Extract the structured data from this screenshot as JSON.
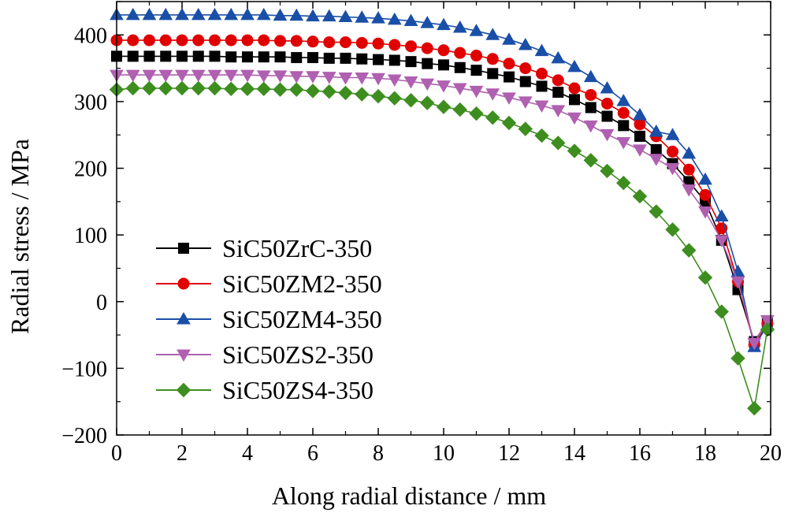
{
  "chart_data": {
    "type": "line",
    "title": "",
    "xlabel": "Along radial distance / mm",
    "ylabel": "Radial stress / MPa",
    "xlim": [
      0,
      20
    ],
    "ylim": [
      -200,
      450
    ],
    "x_ticks": [
      0,
      2,
      4,
      6,
      8,
      10,
      12,
      14,
      16,
      18,
      20
    ],
    "y_ticks": [
      -200,
      -100,
      0,
      100,
      200,
      300,
      400
    ],
    "x_tick_labels": [
      "0",
      "2",
      "4",
      "6",
      "8",
      "10",
      "12",
      "14",
      "16",
      "18",
      "20"
    ],
    "y_tick_labels": [
      "−200",
      "−100",
      "0",
      "100",
      "200",
      "300",
      "400"
    ],
    "grid": false,
    "legend_position": "bottom-left",
    "x": [
      0,
      0.5,
      1,
      1.5,
      2,
      2.5,
      3,
      3.5,
      4,
      4.5,
      5,
      5.5,
      6,
      6.5,
      7,
      7.5,
      8,
      8.5,
      9,
      9.5,
      10,
      10.5,
      11,
      11.5,
      12,
      12.5,
      13,
      13.5,
      14,
      14.5,
      15,
      15.5,
      16,
      16.5,
      17,
      17.5,
      18,
      18.5,
      19,
      19.5,
      19.9
    ],
    "series": [
      {
        "name": "SiC50ZrC-350",
        "color": "#000000",
        "marker": "square",
        "values": [
          368,
          368,
          368,
          368,
          368,
          368,
          368,
          367,
          367,
          367,
          367,
          366,
          366,
          365,
          365,
          364,
          363,
          362,
          360,
          357,
          355,
          351,
          347,
          342,
          337,
          330,
          323,
          314,
          303,
          291,
          278,
          264,
          248,
          228,
          207,
          180,
          150,
          92,
          18,
          -60,
          -30
        ]
      },
      {
        "name": "SiC50ZM2-350",
        "color": "#e00000",
        "marker": "circle",
        "values": [
          392,
          392,
          392,
          392,
          392,
          392,
          392,
          392,
          392,
          392,
          391,
          391,
          390,
          389,
          389,
          388,
          387,
          385,
          383,
          380,
          377,
          373,
          369,
          364,
          357,
          350,
          342,
          332,
          320,
          310,
          297,
          283,
          266,
          248,
          225,
          198,
          160,
          110,
          30,
          -65,
          -33
        ]
      },
      {
        "name": "SiC50ZM4-350",
        "color": "#1a4fa8",
        "marker": "triangle-up",
        "values": [
          430,
          430,
          430,
          430,
          430,
          430,
          430,
          430,
          430,
          430,
          429,
          429,
          428,
          428,
          427,
          426,
          425,
          423,
          421,
          418,
          415,
          411,
          406,
          400,
          393,
          385,
          376,
          365,
          352,
          337,
          320,
          301,
          280,
          255,
          250,
          222,
          183,
          128,
          45,
          -68,
          -35
        ]
      },
      {
        "name": "SiC50ZS2-350",
        "color": "#b060b0",
        "marker": "triangle-down",
        "values": [
          340,
          340,
          340,
          340,
          340,
          340,
          340,
          340,
          340,
          339,
          339,
          338,
          338,
          337,
          336,
          336,
          335,
          333,
          330,
          327,
          324,
          320,
          316,
          312,
          306,
          300,
          294,
          287,
          276,
          264,
          251,
          239,
          228,
          214,
          200,
          168,
          135,
          92,
          30,
          -62,
          -28
        ]
      },
      {
        "name": "SiC50ZS4-350",
        "color": "#3e8e1f",
        "marker": "diamond",
        "values": [
          318,
          320,
          320,
          320,
          320,
          320,
          320,
          319,
          319,
          319,
          318,
          318,
          316,
          315,
          313,
          311,
          308,
          305,
          302,
          298,
          292,
          288,
          282,
          276,
          268,
          259,
          249,
          238,
          226,
          212,
          196,
          178,
          158,
          135,
          108,
          77,
          36,
          -15,
          -85,
          -160,
          -42
        ]
      }
    ]
  }
}
